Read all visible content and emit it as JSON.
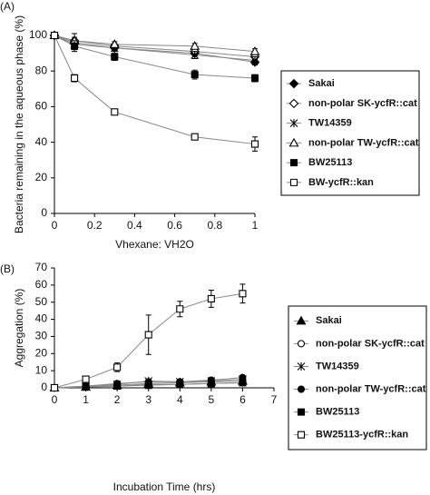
{
  "chart_data": [
    {
      "type": "line",
      "panel": "(A)",
      "x_label": "Vhexane: VH2O",
      "y_label": "Bacteria remaining in the aqueous phase (%)",
      "x": [
        0,
        0.1,
        0.3,
        0.7,
        1
      ],
      "xlim": [
        0,
        1
      ],
      "xticks": [
        0,
        0.2,
        0.4,
        0.6,
        0.8,
        1
      ],
      "ylim": [
        0,
        100
      ],
      "yticks": [
        0,
        20,
        40,
        60,
        80,
        100
      ],
      "grid": false,
      "series": [
        {
          "name": "Sakai",
          "color": "#000000",
          "marker": "diamond",
          "filled": true,
          "values": [
            100,
            96,
            93,
            90,
            85
          ],
          "errors": [
            0,
            2,
            1.5,
            1.5,
            1.5
          ]
        },
        {
          "name": "non-polar SK-ycfR::cat",
          "color": "#000000",
          "marker": "diamond",
          "filled": false,
          "values": [
            100,
            97,
            94,
            91,
            88
          ],
          "errors": [
            0,
            2,
            1.5,
            1.5,
            1.5
          ]
        },
        {
          "name": "TW14359",
          "color": "#000000",
          "marker": "asterisk",
          "filled": true,
          "values": [
            100,
            95,
            93,
            89,
            86
          ],
          "errors": [
            0,
            3,
            2,
            2,
            2
          ]
        },
        {
          "name": "non-polar TW-ycfR::cat",
          "color": "#000000",
          "marker": "triangle",
          "filled": false,
          "values": [
            100,
            97,
            95,
            94,
            91
          ],
          "errors": [
            0,
            4,
            1.5,
            1.5,
            1.5
          ]
        },
        {
          "name": "BW25113",
          "color": "#000000",
          "marker": "square",
          "filled": true,
          "values": [
            100,
            94,
            88,
            78,
            76
          ],
          "errors": [
            0,
            3,
            2,
            2.5,
            2
          ]
        },
        {
          "name": "BW-ycfR::kan",
          "color": "#000000",
          "marker": "square",
          "filled": false,
          "values": [
            100,
            76,
            57,
            43,
            39
          ],
          "errors": [
            0,
            2,
            1.5,
            1.5,
            4
          ]
        }
      ]
    },
    {
      "type": "line",
      "panel": "(B)",
      "x_label": "Incubation Time (hrs)",
      "y_label": "Aggregation (%)",
      "x": [
        0,
        1,
        2,
        3,
        4,
        5,
        6
      ],
      "xlim": [
        0,
        7
      ],
      "xticks": [
        0,
        1,
        2,
        3,
        4,
        5,
        6,
        7
      ],
      "ylim": [
        0,
        70
      ],
      "yticks": [
        0,
        10,
        20,
        30,
        40,
        50,
        60,
        70
      ],
      "grid": false,
      "series": [
        {
          "name": "Sakai",
          "color": "#000000",
          "marker": "triangle",
          "filled": true,
          "values": [
            0,
            0.5,
            1.5,
            2.5,
            3,
            3.5,
            4
          ],
          "errors": [
            0,
            0.5,
            0.5,
            0.8,
            0.8,
            0.8,
            1
          ]
        },
        {
          "name": "non-polar SK-ycfR::cat",
          "color": "#000000",
          "marker": "circle",
          "filled": false,
          "values": [
            0,
            0.5,
            1,
            2,
            2,
            2.5,
            3
          ],
          "errors": [
            0,
            0.5,
            0.5,
            0.8,
            0.8,
            0.8,
            1
          ]
        },
        {
          "name": "TW14359",
          "color": "#000000",
          "marker": "asterisk",
          "filled": true,
          "values": [
            0,
            1,
            2,
            4,
            3.5,
            4,
            5
          ],
          "errors": [
            0,
            0.5,
            0.8,
            1,
            1,
            1,
            1
          ]
        },
        {
          "name": "non-polar TW-ycfR::cat",
          "color": "#000000",
          "marker": "circle",
          "filled": true,
          "values": [
            0,
            1,
            2.5,
            3.5,
            3.5,
            4.5,
            6
          ],
          "errors": [
            0,
            0.5,
            0.8,
            1,
            1,
            1,
            1
          ]
        },
        {
          "name": "BW25113",
          "color": "#000000",
          "marker": "square",
          "filled": true,
          "values": [
            0,
            0.5,
            1,
            1.5,
            2,
            2.5,
            3
          ],
          "errors": [
            0,
            0.5,
            0.5,
            0.8,
            0.8,
            0.8,
            1
          ]
        },
        {
          "name": "BW25113-ycfR::kan",
          "color": "#000000",
          "marker": "square",
          "filled": false,
          "values": [
            0,
            5,
            12,
            31,
            46,
            52,
            55
          ],
          "errors": [
            0,
            1.5,
            2.5,
            11.5,
            4.5,
            5,
            5.5
          ]
        }
      ]
    }
  ]
}
